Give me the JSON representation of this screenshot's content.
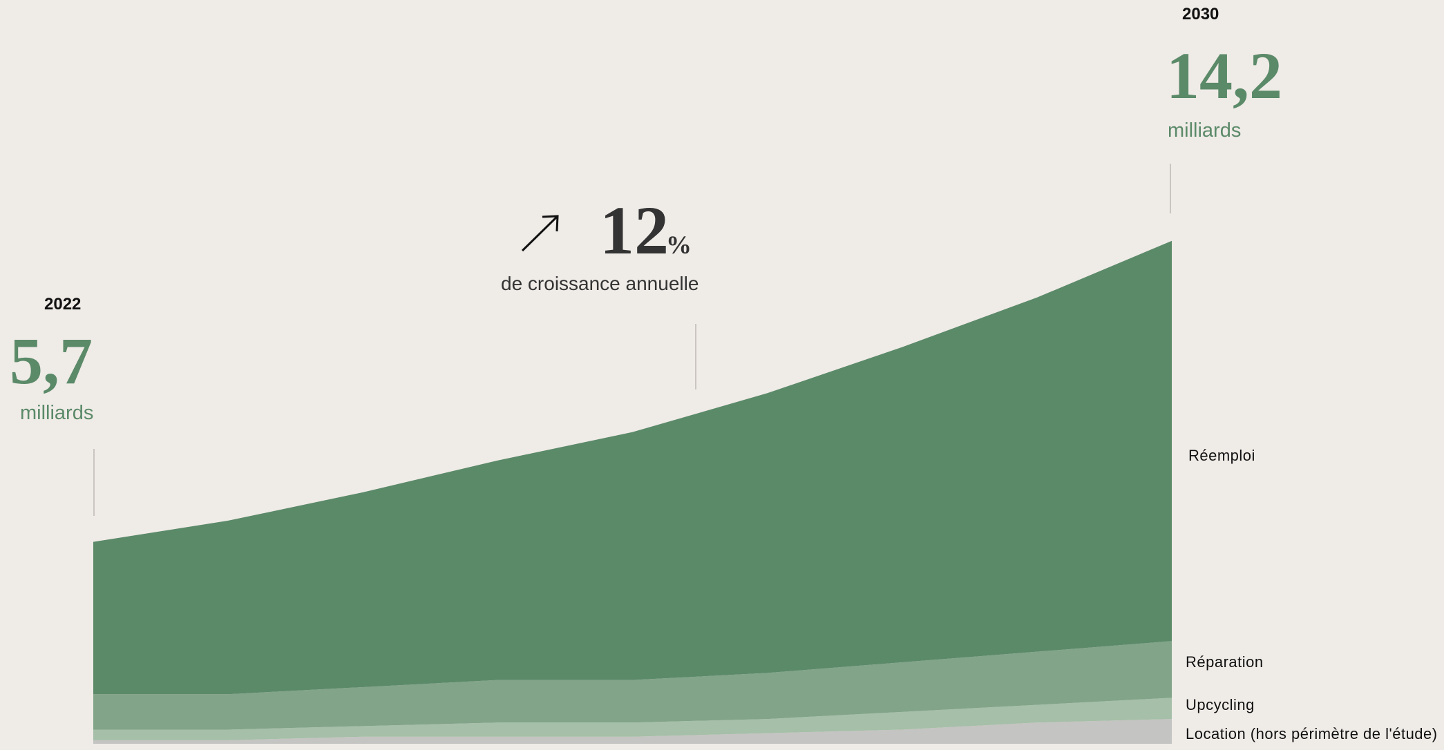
{
  "chart_data": {
    "type": "stacked_area",
    "categories": [
      "2022",
      null,
      null,
      null,
      null,
      null,
      null,
      null,
      "2030"
    ],
    "series": [
      {
        "name": "Location (hors périmètre de l'étude)",
        "color": "#c4c4c2",
        "values": [
          0.1,
          0.1,
          0.2,
          0.2,
          0.2,
          0.3,
          0.4,
          0.6,
          0.7
        ]
      },
      {
        "name": "Upcycling",
        "color": "#a6bfa8",
        "values": [
          0.3,
          0.3,
          0.3,
          0.4,
          0.4,
          0.4,
          0.5,
          0.5,
          0.6
        ]
      },
      {
        "name": "Réparation",
        "color": "#82a489",
        "values": [
          1.0,
          1.0,
          1.1,
          1.2,
          1.2,
          1.3,
          1.4,
          1.5,
          1.6
        ]
      },
      {
        "name": "Réemploi",
        "color": "#5b8a69",
        "values": [
          4.3,
          4.9,
          5.5,
          6.2,
          7.0,
          7.9,
          8.9,
          10.0,
          11.3
        ]
      }
    ],
    "ylim": [
      0,
      21
    ],
    "annotations": {
      "start_total": "5,7",
      "start_unit": "milliards",
      "end_total": "14,2",
      "end_unit": "milliards",
      "growth_value": "12",
      "growth_unit": "%",
      "growth_text": "de croissance annuelle"
    }
  }
}
